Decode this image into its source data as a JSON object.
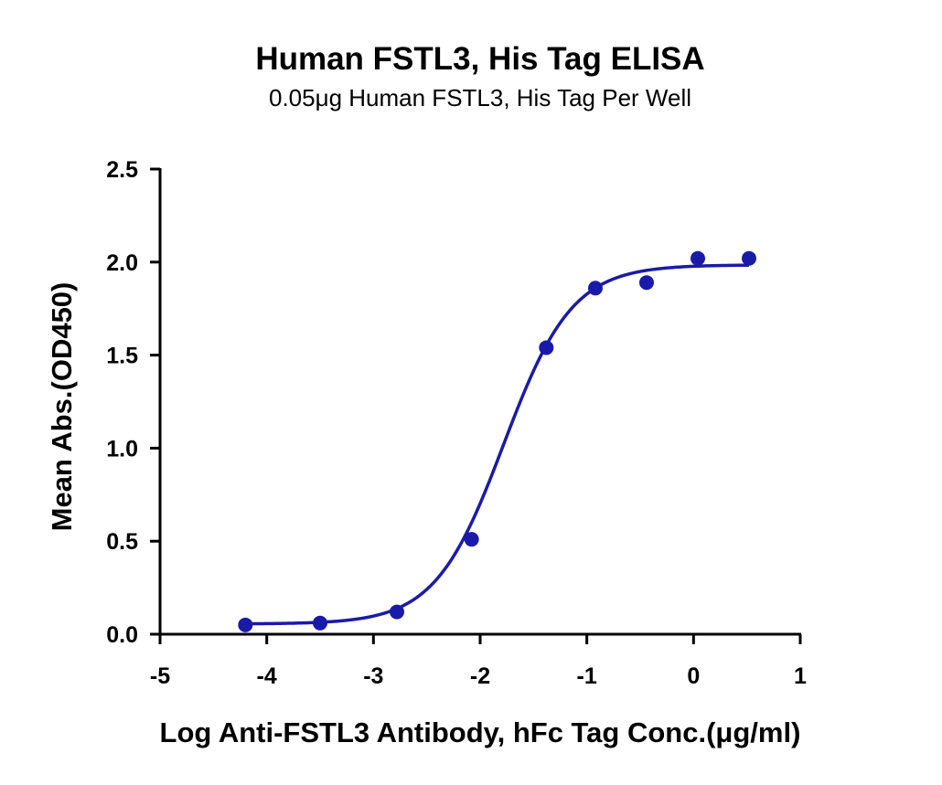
{
  "chart_data": {
    "type": "scatter",
    "title": "Human FSTL3, His Tag ELISA",
    "subtitle": "0.05μg Human FSTL3, His Tag Per Well",
    "xlabel": "Log Anti-FSTL3 Antibody, hFc Tag Conc.(μg/ml)",
    "ylabel": "Mean Abs.(OD450)",
    "xlim": [
      -5,
      1
    ],
    "ylim": [
      0,
      2.5
    ],
    "xticks": [
      -5,
      -4,
      -3,
      -2,
      -1,
      0,
      1
    ],
    "yticks": [
      0.0,
      0.5,
      1.0,
      1.5,
      2.0,
      2.5
    ],
    "xtick_labels": [
      "-5",
      "-4",
      "-3",
      "-2",
      "-1",
      "0",
      "1"
    ],
    "ytick_labels": [
      "0.0",
      "0.5",
      "1.0",
      "1.5",
      "2.0",
      "2.5"
    ],
    "grid": false,
    "series": [
      {
        "points": [
          {
            "x": -4.2,
            "y": 0.05
          },
          {
            "x": -3.5,
            "y": 0.06
          },
          {
            "x": -2.78,
            "y": 0.12
          },
          {
            "x": -2.08,
            "y": 0.51
          },
          {
            "x": -1.38,
            "y": 1.54
          },
          {
            "x": -0.92,
            "y": 1.86
          },
          {
            "x": -0.44,
            "y": 1.89
          },
          {
            "x": 0.04,
            "y": 2.02
          },
          {
            "x": 0.52,
            "y": 2.02
          }
        ],
        "color": "#1a1aaa"
      }
    ],
    "fit": {
      "model": "4PL",
      "bottom": 0.055,
      "top": 1.985,
      "log_ec50": -1.78,
      "hill_slope": 1.35,
      "x_range": [
        -4.2,
        0.52
      ],
      "color": "#1a1aaa"
    }
  }
}
